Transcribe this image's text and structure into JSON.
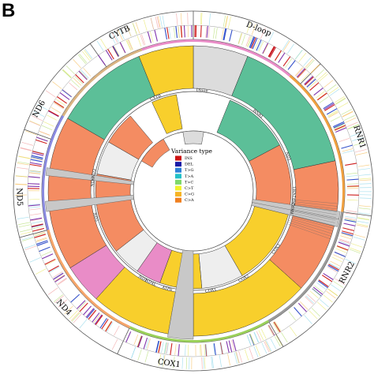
{
  "panel_label": "B",
  "outer_track": {
    "labels": [
      "CYTB",
      "D-loop",
      "RNR1",
      "RNR2",
      "COX1",
      "ND4",
      "ND5",
      "ND6"
    ]
  },
  "inner_labels": [
    "CYTB",
    "ND6",
    "ND5",
    "ND4",
    "ATP6",
    "COX1",
    "COX2",
    "COX3",
    "ND1",
    "ND2",
    "RNR1",
    "RNR2",
    "Dloop",
    "TRN",
    "ND3",
    "ND4L"
  ],
  "legend": {
    "title": "Variance type",
    "items": [
      {
        "label": "INS",
        "color": "#cc1111"
      },
      {
        "label": "DEL",
        "color": "#1a1aa6"
      },
      {
        "label": "T>G",
        "color": "#2f80d8"
      },
      {
        "label": "T>A",
        "color": "#22c0c8"
      },
      {
        "label": "T>C",
        "color": "#7fd86a"
      },
      {
        "label": "C>T",
        "color": "#f2f22a"
      },
      {
        "label": "C>G",
        "color": "#f7b322"
      },
      {
        "label": "C>A",
        "color": "#f07f1f"
      }
    ]
  },
  "colors": {
    "green": "#5cbf98",
    "salmon": "#f48c62",
    "yellow": "#f8cf2c",
    "pink": "#e98cc7",
    "grey": "#dcdcdc",
    "tan": "#d9b382",
    "bar_red": "#cc1111",
    "bar_purple": "#7a2aa8",
    "bar_blue": "#2a48c8"
  }
}
